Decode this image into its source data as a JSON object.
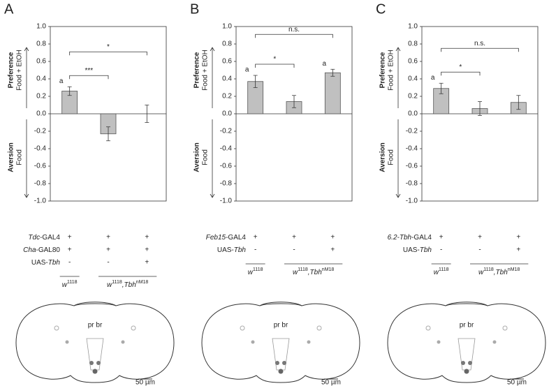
{
  "chart_data": [
    {
      "type": "bar",
      "panel": "A",
      "ylim": [
        -1,
        1
      ],
      "yticks": [
        {
          "value": -1,
          "label": "-1.0"
        },
        -0.8,
        -0.6,
        -0.4,
        -0.2,
        {
          "value": 0,
          "label": "0.0"
        },
        0.2,
        0.4,
        0.6,
        0.8,
        {
          "value": 1,
          "label": "1.0"
        }
      ],
      "y_label_top": [
        "Preference",
        "Food + EtOH"
      ],
      "y_label_bottom": [
        "Aversion",
        "Food"
      ],
      "series": [
        {
          "color": "#c0c0c0",
          "values": [
            0.26,
            -0.23,
            0.0
          ],
          "errors": [
            0.05,
            0.08,
            0.1
          ]
        }
      ],
      "letters": [
        "a",
        null,
        null
      ],
      "comparisons": [
        {
          "from": 0,
          "to": 1,
          "label": "***"
        },
        {
          "from": 0,
          "to": 2,
          "label": "*"
        }
      ],
      "genotype_rows": [
        {
          "label": [
            {
              "t": "Tdc",
              "i": true
            },
            {
              "t": "-GAL4"
            }
          ],
          "values": [
            "+",
            "+",
            "+"
          ]
        },
        {
          "label": [
            {
              "t": "Cha",
              "i": true
            },
            {
              "t": "-GAL80"
            }
          ],
          "values": [
            "+",
            "+",
            "+"
          ]
        },
        {
          "label": [
            {
              "t": "UAS-"
            },
            {
              "t": "Tbh",
              "i": true
            }
          ],
          "values": [
            "-",
            "-",
            "+"
          ]
        }
      ],
      "genotype_groups": [
        {
          "span": [
            0,
            0
          ],
          "label": [
            {
              "t": "w",
              "i": true
            },
            {
              "t": "1118",
              "sup": true
            }
          ]
        },
        {
          "span": [
            1,
            2
          ],
          "label": [
            {
              "t": "w",
              "i": true
            },
            {
              "t": "1118",
              "sup": true
            },
            {
              "t": ",Tbh",
              "i": true
            },
            {
              "t": "nM18",
              "sup": true
            }
          ]
        }
      ],
      "brain_label": "pr br",
      "scale_label": "50 µm"
    },
    {
      "type": "bar",
      "panel": "B",
      "ylim": [
        -1,
        1
      ],
      "yticks": [
        {
          "value": -1,
          "label": "-1.0"
        },
        -0.8,
        -0.6,
        -0.4,
        -0.2,
        {
          "value": 0,
          "label": "0.0"
        },
        0.2,
        0.4,
        0.6,
        0.8,
        {
          "value": 1,
          "label": "1.0"
        }
      ],
      "y_label_top": [
        "Preference",
        "Food + EtOH"
      ],
      "y_label_bottom": [
        "Aversion",
        "Food"
      ],
      "series": [
        {
          "color": "#c0c0c0",
          "values": [
            0.37,
            0.14,
            0.47
          ],
          "errors": [
            0.07,
            0.07,
            0.04
          ]
        }
      ],
      "letters": [
        "a",
        null,
        "a"
      ],
      "comparisons": [
        {
          "from": 0,
          "to": 1,
          "label": "*"
        },
        {
          "from": 0,
          "to": 2,
          "label": "n.s."
        }
      ],
      "genotype_rows": [
        {
          "label": [
            {
              "t": "Feb15",
              "i": true
            },
            {
              "t": "-GAL4"
            }
          ],
          "values": [
            "+",
            "+",
            "+"
          ]
        },
        {
          "label": [
            {
              "t": "UAS-"
            },
            {
              "t": "Tbh",
              "i": true
            }
          ],
          "values": [
            "-",
            "-",
            "+"
          ]
        }
      ],
      "genotype_groups": [
        {
          "span": [
            0,
            0
          ],
          "label": [
            {
              "t": "w",
              "i": true
            },
            {
              "t": "1118",
              "sup": true
            }
          ]
        },
        {
          "span": [
            1,
            2
          ],
          "label": [
            {
              "t": "w",
              "i": true
            },
            {
              "t": "1118",
              "sup": true
            },
            {
              "t": ",Tbh",
              "i": true
            },
            {
              "t": "nM18",
              "sup": true
            }
          ]
        }
      ],
      "brain_label": "pr br",
      "scale_label": "50 µm"
    },
    {
      "type": "bar",
      "panel": "C",
      "ylim": [
        -1,
        1
      ],
      "yticks": [
        {
          "value": -1,
          "label": "-1.0"
        },
        -0.8,
        -0.6,
        -0.4,
        -0.2,
        {
          "value": 0,
          "label": "0.0"
        },
        0.2,
        0.4,
        0.6,
        0.8,
        {
          "value": 1,
          "label": "1.0"
        }
      ],
      "y_label_top": [
        "Preference",
        "Food + EtOH"
      ],
      "y_label_bottom": [
        "Aversion",
        "Food"
      ],
      "series": [
        {
          "color": "#c0c0c0",
          "values": [
            0.29,
            0.06,
            0.13
          ],
          "errors": [
            0.06,
            0.08,
            0.08
          ]
        }
      ],
      "letters": [
        "a",
        null,
        null
      ],
      "comparisons": [
        {
          "from": 0,
          "to": 1,
          "label": "*"
        },
        {
          "from": 0,
          "to": 2,
          "label": "n.s."
        }
      ],
      "genotype_rows": [
        {
          "label": [
            {
              "t": "6.2-Tbh",
              "i": true
            },
            {
              "t": "-GAL4"
            }
          ],
          "values": [
            "+",
            "+",
            "+"
          ]
        },
        {
          "label": [
            {
              "t": "UAS-"
            },
            {
              "t": "Tbh",
              "i": true
            }
          ],
          "values": [
            "-",
            "-",
            "+"
          ]
        }
      ],
      "genotype_groups": [
        {
          "span": [
            0,
            0
          ],
          "label": [
            {
              "t": "w",
              "i": true
            },
            {
              "t": "1118",
              "sup": true
            }
          ]
        },
        {
          "span": [
            1,
            2
          ],
          "label": [
            {
              "t": "w",
              "i": true
            },
            {
              "t": "1118",
              "sup": true
            },
            {
              "t": ",Tbh",
              "i": true
            },
            {
              "t": "nM18",
              "sup": true
            }
          ]
        }
      ],
      "brain_label": "pr br",
      "scale_label": "50 µm"
    }
  ]
}
